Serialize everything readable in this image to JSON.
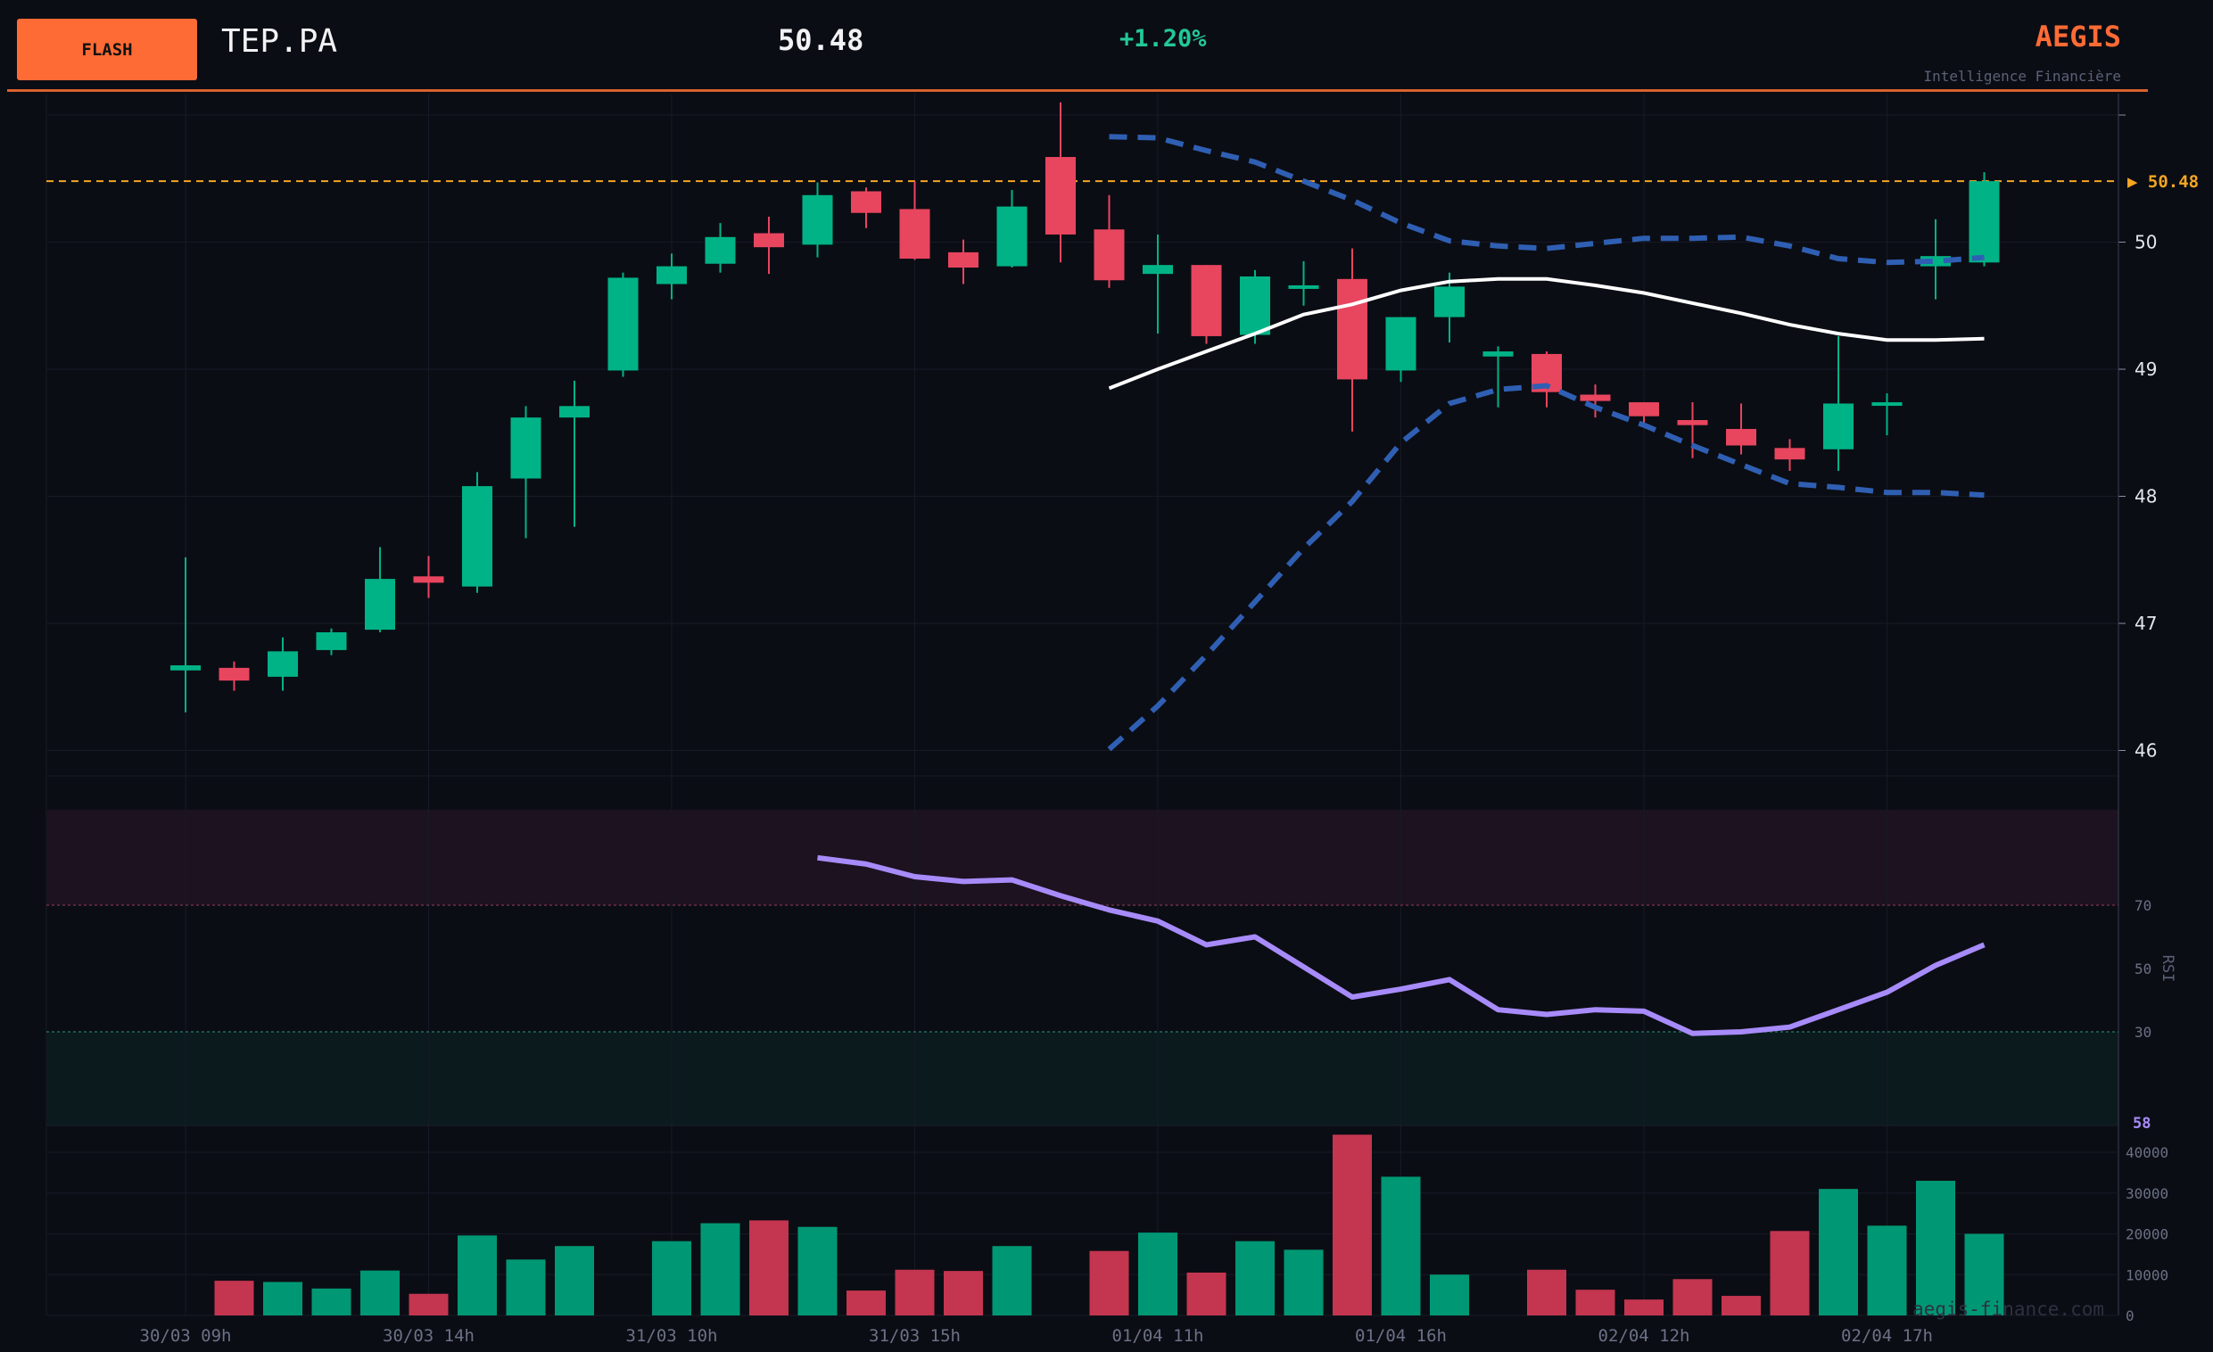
{
  "header": {
    "badge": "FLASH",
    "ticker": "TEP.PA",
    "price": "50.48",
    "change": "+1.20%",
    "brand": "AEGIS",
    "tagline": "Intelligence Financière"
  },
  "watermark": "aegis-finance.com",
  "colors": {
    "background": "#0b0d14",
    "up": "#00b386",
    "down": "#e8455f",
    "bollinger_band": "#2f5fb3",
    "bollinger_mid": "#ffffff",
    "rsi_line": "#a78bfa",
    "last_price": "#f5a623",
    "accent": "#ff6b35"
  },
  "chart_data": [
    {
      "type": "candlestick",
      "name": "price",
      "x_tick_labels": [
        "30/03 09h",
        "30/03 14h",
        "31/03 10h",
        "31/03 15h",
        "01/04 11h",
        "01/04 16h",
        "02/04 12h",
        "02/04 17h"
      ],
      "x_tick_candle_index": [
        0,
        5,
        10,
        15,
        20,
        25,
        30,
        35
      ],
      "y_ticks": [
        46,
        47,
        48,
        49,
        50
      ],
      "ylim": [
        45.6,
        51.0
      ],
      "last_price_label": "▶ 50.48",
      "last_price": 50.48,
      "candles": [
        {
          "o": 46.63,
          "h": 47.52,
          "l": 46.3,
          "c": 46.67
        },
        {
          "o": 46.65,
          "h": 46.7,
          "l": 46.47,
          "c": 46.55
        },
        {
          "o": 46.58,
          "h": 46.89,
          "l": 46.47,
          "c": 46.78
        },
        {
          "o": 46.79,
          "h": 46.96,
          "l": 46.75,
          "c": 46.93
        },
        {
          "o": 46.95,
          "h": 47.6,
          "l": 46.93,
          "c": 47.35
        },
        {
          "o": 47.37,
          "h": 47.53,
          "l": 47.2,
          "c": 47.32
        },
        {
          "o": 47.29,
          "h": 48.19,
          "l": 47.24,
          "c": 48.08
        },
        {
          "o": 48.14,
          "h": 48.71,
          "l": 47.67,
          "c": 48.62
        },
        {
          "o": 48.62,
          "h": 48.91,
          "l": 47.76,
          "c": 48.71
        },
        {
          "o": 48.99,
          "h": 49.76,
          "l": 48.94,
          "c": 49.72
        },
        {
          "o": 49.67,
          "h": 49.91,
          "l": 49.55,
          "c": 49.81
        },
        {
          "o": 49.83,
          "h": 50.15,
          "l": 49.76,
          "c": 50.04
        },
        {
          "o": 50.07,
          "h": 50.2,
          "l": 49.75,
          "c": 49.96
        },
        {
          "o": 49.98,
          "h": 50.47,
          "l": 49.88,
          "c": 50.37
        },
        {
          "o": 50.4,
          "h": 50.43,
          "l": 50.11,
          "c": 50.23
        },
        {
          "o": 50.26,
          "h": 50.48,
          "l": 49.86,
          "c": 49.87
        },
        {
          "o": 49.92,
          "h": 50.02,
          "l": 49.67,
          "c": 49.8
        },
        {
          "o": 49.81,
          "h": 50.41,
          "l": 49.8,
          "c": 50.28
        },
        {
          "o": 50.67,
          "h": 51.1,
          "l": 49.84,
          "c": 50.06
        },
        {
          "o": 50.1,
          "h": 50.37,
          "l": 49.64,
          "c": 49.7
        },
        {
          "o": 49.75,
          "h": 50.06,
          "l": 49.28,
          "c": 49.82
        },
        {
          "o": 49.82,
          "h": 49.82,
          "l": 49.2,
          "c": 49.26
        },
        {
          "o": 49.27,
          "h": 49.78,
          "l": 49.2,
          "c": 49.73
        },
        {
          "o": 49.64,
          "h": 49.85,
          "l": 49.5,
          "c": 49.66
        },
        {
          "o": 49.71,
          "h": 49.95,
          "l": 48.51,
          "c": 48.92
        },
        {
          "o": 48.99,
          "h": 49.41,
          "l": 48.9,
          "c": 49.41
        },
        {
          "o": 49.41,
          "h": 49.76,
          "l": 49.21,
          "c": 49.65
        },
        {
          "o": 49.1,
          "h": 49.18,
          "l": 48.7,
          "c": 49.14
        },
        {
          "o": 49.12,
          "h": 49.14,
          "l": 48.7,
          "c": 48.82
        },
        {
          "o": 48.8,
          "h": 48.88,
          "l": 48.62,
          "c": 48.75
        },
        {
          "o": 48.74,
          "h": 48.74,
          "l": 48.55,
          "c": 48.63
        },
        {
          "o": 48.6,
          "h": 48.74,
          "l": 48.3,
          "c": 48.56
        },
        {
          "o": 48.53,
          "h": 48.73,
          "l": 48.33,
          "c": 48.4
        },
        {
          "o": 48.38,
          "h": 48.45,
          "l": 48.2,
          "c": 48.29
        },
        {
          "o": 48.37,
          "h": 49.26,
          "l": 48.2,
          "c": 48.73
        },
        {
          "o": 48.73,
          "h": 48.81,
          "l": 48.48,
          "c": 48.74
        },
        {
          "o": 49.81,
          "h": 50.18,
          "l": 49.55,
          "c": 49.89
        },
        {
          "o": 49.84,
          "h": 50.55,
          "l": 49.81,
          "c": 50.48
        }
      ],
      "bollinger": {
        "start_index": 19,
        "upper": [
          50.83,
          50.82,
          50.72,
          50.63,
          50.48,
          50.33,
          50.15,
          50.01,
          49.97,
          49.95,
          49.99,
          50.03,
          50.03,
          50.04,
          49.97,
          49.87,
          49.84,
          49.85,
          49.88
        ],
        "middle": [
          48.85,
          49.0,
          49.14,
          49.28,
          49.43,
          49.51,
          49.62,
          49.69,
          49.71,
          49.71,
          49.66,
          49.6,
          49.52,
          49.44,
          49.35,
          49.28,
          49.23,
          49.23,
          49.24
        ],
        "lower": [
          46.01,
          46.35,
          46.75,
          47.17,
          47.59,
          47.96,
          48.42,
          48.73,
          48.84,
          48.87,
          48.7,
          48.56,
          48.4,
          48.25,
          48.1,
          48.07,
          48.03,
          48.03,
          48.01
        ]
      }
    },
    {
      "type": "line",
      "name": "RSI",
      "ylabel": "RSI",
      "y_ticks": [
        30,
        50,
        70
      ],
      "ylim": [
        0,
        100
      ],
      "overbought": 70,
      "oversold": 30,
      "current_value_label": "58",
      "start_index": 13,
      "values": [
        85,
        83,
        79,
        77.5,
        78,
        73,
        68.5,
        65,
        57.5,
        60,
        50.5,
        41,
        43.5,
        46.5,
        37,
        35.5,
        37,
        36.5,
        29.5,
        30,
        31.5,
        37,
        42.5,
        51,
        57.5
      ]
    },
    {
      "type": "bar",
      "name": "volume",
      "y_ticks": [
        0,
        10000,
        20000,
        30000,
        40000
      ],
      "ylim": [
        0,
        46000
      ],
      "values": [
        0,
        8500,
        8200,
        6600,
        11000,
        5300,
        19600,
        13700,
        17000,
        0,
        18200,
        22600,
        23300,
        21700,
        6100,
        11200,
        10900,
        17000,
        0,
        15800,
        20300,
        10500,
        18200,
        16100,
        44300,
        34000,
        10000,
        0,
        11200,
        6300,
        3900,
        8900,
        4800,
        20700,
        31000,
        22000,
        33000,
        20000
      ]
    }
  ]
}
